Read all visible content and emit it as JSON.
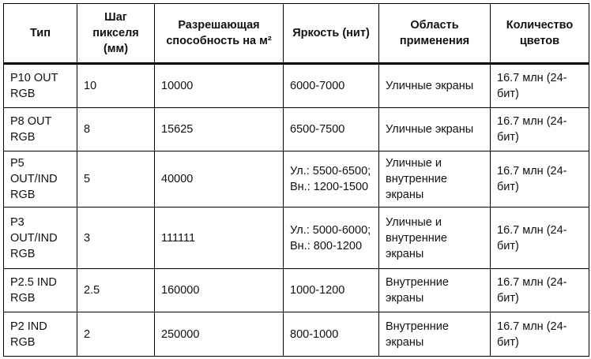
{
  "headers": [
    "Тип",
    "Шаг пикселя (мм)",
    "Разрешающая способность на м²",
    "Яркость (нит)",
    "Область применения",
    "Количество цветов"
  ],
  "rows": [
    [
      "P10 OUT RGB",
      "10",
      "10000",
      "6000-7000",
      "Уличные экраны",
      "16.7 млн (24-бит)"
    ],
    [
      "P8 OUT RGB",
      "8",
      "15625",
      "6500-7500",
      "Уличные экраны",
      "16.7 млн (24-бит)"
    ],
    [
      "P5 OUT/IND RGB",
      "5",
      "40000",
      "Ул.: 5500-6500; Вн.: 1200-1500",
      "Уличные и внутренние экраны",
      "16.7 млн (24-бит)"
    ],
    [
      "P3 OUT/IND RGB",
      "3",
      "111111",
      "Ул.: 5000-6000; Вн.: 800-1200",
      "Уличные и внутренние экраны",
      "16.7 млн (24-бит)"
    ],
    [
      "P2.5 IND RGB",
      "2.5",
      "160000",
      "1000-1200",
      "Внутренние экраны",
      "16.7 млн (24-бит)"
    ],
    [
      "P2 IND RGB",
      "2",
      "250000",
      "800-1000",
      "Внутренние экраны",
      "16.7 млн (24-бит)"
    ]
  ]
}
